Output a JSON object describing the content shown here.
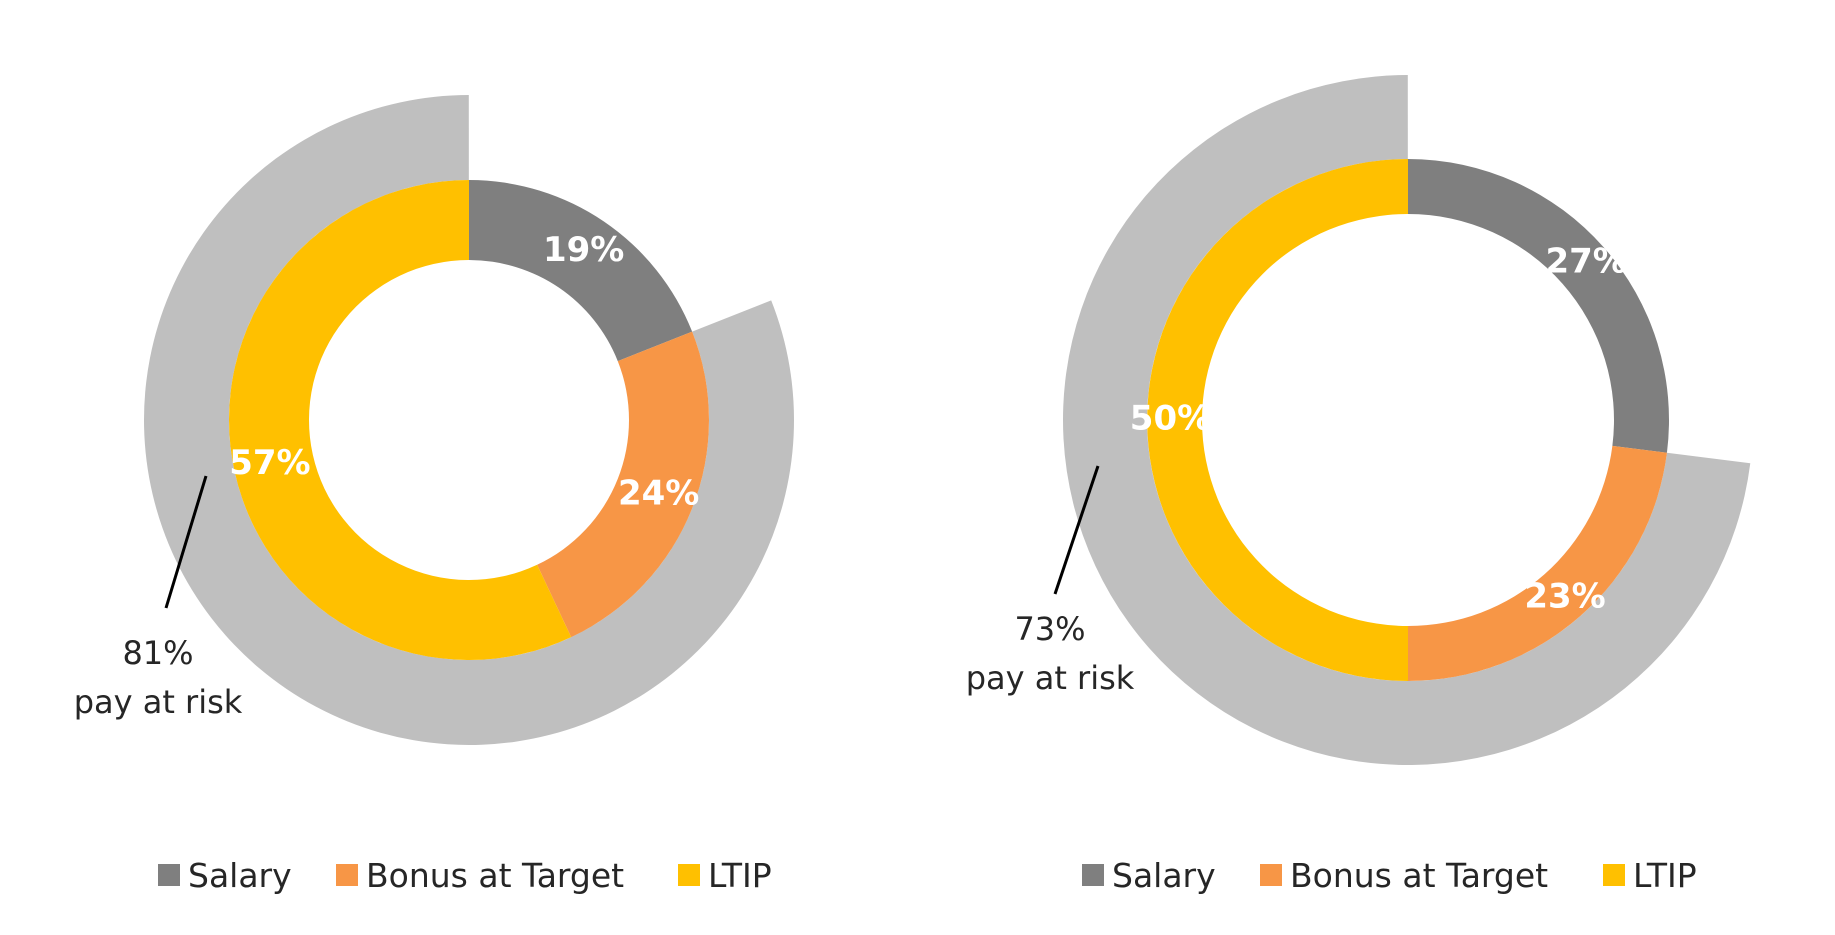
{
  "colors": {
    "salary": "#7f7f7f",
    "bonus": "#f79646",
    "ltip": "#ffc000",
    "at_risk": "#bfbfbf",
    "leader": "#000000"
  },
  "chart_data": [
    {
      "type": "pie",
      "subtype": "donut",
      "categories": [
        "Salary",
        "Bonus at Target",
        "LTIP"
      ],
      "values": [
        19,
        24,
        57
      ],
      "labels": [
        "19%",
        "24%",
        "57%"
      ],
      "outer_ring": {
        "name": "pay at risk",
        "value": 81
      },
      "annotation": {
        "line1": "81%",
        "line2": "pay at risk"
      },
      "legend": [
        "Salary",
        "Bonus at Target",
        "LTIP"
      ],
      "legend_position": "bottom"
    },
    {
      "type": "pie",
      "subtype": "donut",
      "categories": [
        "Salary",
        "Bonus at Target",
        "LTIP"
      ],
      "values": [
        27,
        23,
        50
      ],
      "labels": [
        "27%",
        "23%",
        "50%"
      ],
      "outer_ring": {
        "name": "pay at risk",
        "value": 73
      },
      "annotation": {
        "line1": "73%",
        "line2": "pay at risk"
      },
      "legend": [
        "Salary",
        "Bonus at Target",
        "LTIP"
      ],
      "legend_position": "bottom"
    }
  ]
}
